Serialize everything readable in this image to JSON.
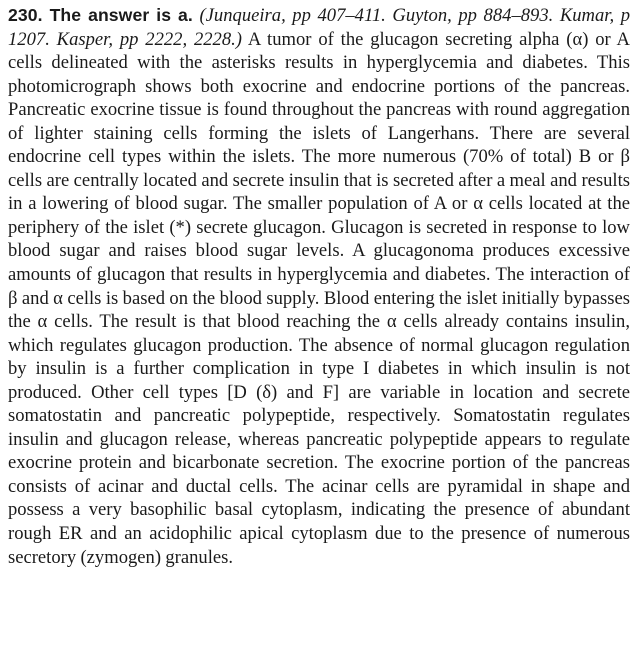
{
  "answer": {
    "heading": "230. The answer is a.",
    "citation": "(Junqueira, pp 407–411. Guyton, pp 884–893. Kumar, p 1207. Kasper, pp 2222, 2228.)",
    "body": "A tumor of the glucagon secreting alpha (α) or A cells delineated with the asterisks results in hyperglycemia and diabetes. This photomicrograph shows both exocrine and endocrine portions of the pancreas. Pancreatic exocrine tissue is found throughout the pancreas with round aggregation of lighter staining cells forming the islets of Langerhans. There are several endocrine cell types within the islets. The more numerous (70% of total) B or β cells are centrally located and secrete insulin that is secreted after a meal and results in a lowering of blood sugar. The smaller population of A or α cells located at the periph­ery of the islet (*) secrete glucagon. Glucagon is secreted in response to low blood sugar and raises blood sugar levels. A glucagonoma produces exces­sive amounts of glucagon that results in hyperglycemia and diabetes. The interaction of β and α cells is based on the blood supply. Blood entering the islet initially bypasses the α cells. The result is that blood reaching the α cells already contains insulin, which regulates glucagon production. The absence of normal glucagon regulation by insulin is a further complication in type I diabetes in which insulin is not produced. Other cell types [D (δ) and F] are variable in location and secrete somatostatin and pancreatic polypeptide, respectively. Somatostatin regulates insulin and glucagon release, whereas pancreatic polypeptide appears to regulate exocrine pro­tein and bicarbonate secretion. The exocrine portion of the pancreas con­sists of acinar and ductal cells. The acinar cells are pyramidal in shape and possess a very basophilic basal cytoplasm, indicating the presence of abun­dant rough ER and an acidophilic apical cytoplasm due to the presence of numerous secretory (zymogen) granules."
  }
}
